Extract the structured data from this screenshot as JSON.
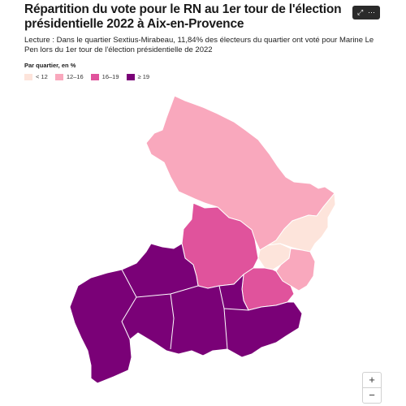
{
  "title": "Répartition du vote pour le RN au 1er tour de l'élection présidentielle 2022 à Aix-en-Provence",
  "subtitle": "Lecture : Dans le quartier Sextius-Mirabeau, 11,84% des électeurs du quartier ont voté pour Marine Le Pen lors du 1er tour de l'élection présidentielle de 2022",
  "legend": {
    "title": "Par quartier, en %",
    "items": [
      {
        "label": "< 12",
        "color": "#fde4db"
      },
      {
        "label": "12–16",
        "color": "#f9a8bd"
      },
      {
        "label": "16–19",
        "color": "#e0539c"
      },
      {
        "label": "≥ 19",
        "color": "#7a0177"
      }
    ]
  },
  "toolbar": {
    "expand_icon": "expand-icon",
    "more_icon": "more-icon",
    "expand_glyph": "⤢",
    "more_glyph": "⋯"
  },
  "zoom": {
    "in_label": "+",
    "out_label": "−"
  },
  "colors": {
    "border": "#ffffff"
  }
}
